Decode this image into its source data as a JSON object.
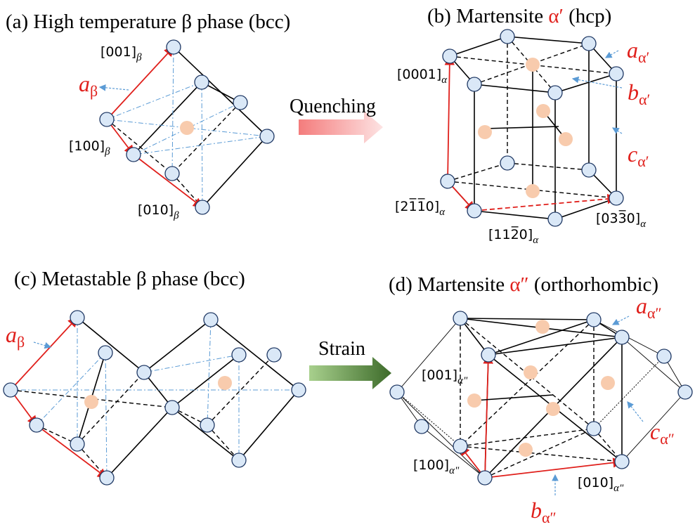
{
  "panel_a": {
    "title": "(a) High temperature β phase (bcc)",
    "labels": [
      {
        "text": "[001]",
        "sub": "β"
      },
      {
        "text": "[100]",
        "sub": "β"
      },
      {
        "text": "[010]",
        "sub": "β"
      }
    ],
    "lattice": {
      "text": "a",
      "sub": "β"
    }
  },
  "panel_b": {
    "title_prefix": "(b) Martensite ",
    "title_highlight": "α′",
    "title_suffix": " (hcp)",
    "labels": [
      {
        "text": "[0001]",
        "sub": "α"
      },
      {
        "text": "[21̅1̅0]",
        "sub": "α"
      },
      {
        "text": "[112̅0]",
        "sub": "α"
      },
      {
        "text": "[033̅0]",
        "sub": "α"
      }
    ],
    "lattice": [
      {
        "text": "a",
        "sub": "α′"
      },
      {
        "text": "b",
        "sub": "α′"
      },
      {
        "text": "c",
        "sub": "α′"
      }
    ]
  },
  "panel_c": {
    "title": "(c) Metastable β phase (bcc)",
    "lattice": {
      "text": "a",
      "sub": "β"
    }
  },
  "panel_d": {
    "title_prefix": "(d) Martensite ",
    "title_highlight": "α″",
    "title_suffix": " (orthorhombic)",
    "labels": [
      {
        "text": "[001]",
        "sub": "α\""
      },
      {
        "text": "[100]",
        "sub": "α\""
      },
      {
        "text": "[010]",
        "sub": "α\""
      }
    ],
    "lattice": [
      {
        "text": "a",
        "sub": "α″"
      },
      {
        "text": "c",
        "sub": "α″"
      },
      {
        "text": "b",
        "sub": "α″"
      }
    ]
  },
  "arrows": {
    "quenching": "Quenching",
    "strain": "Strain"
  }
}
